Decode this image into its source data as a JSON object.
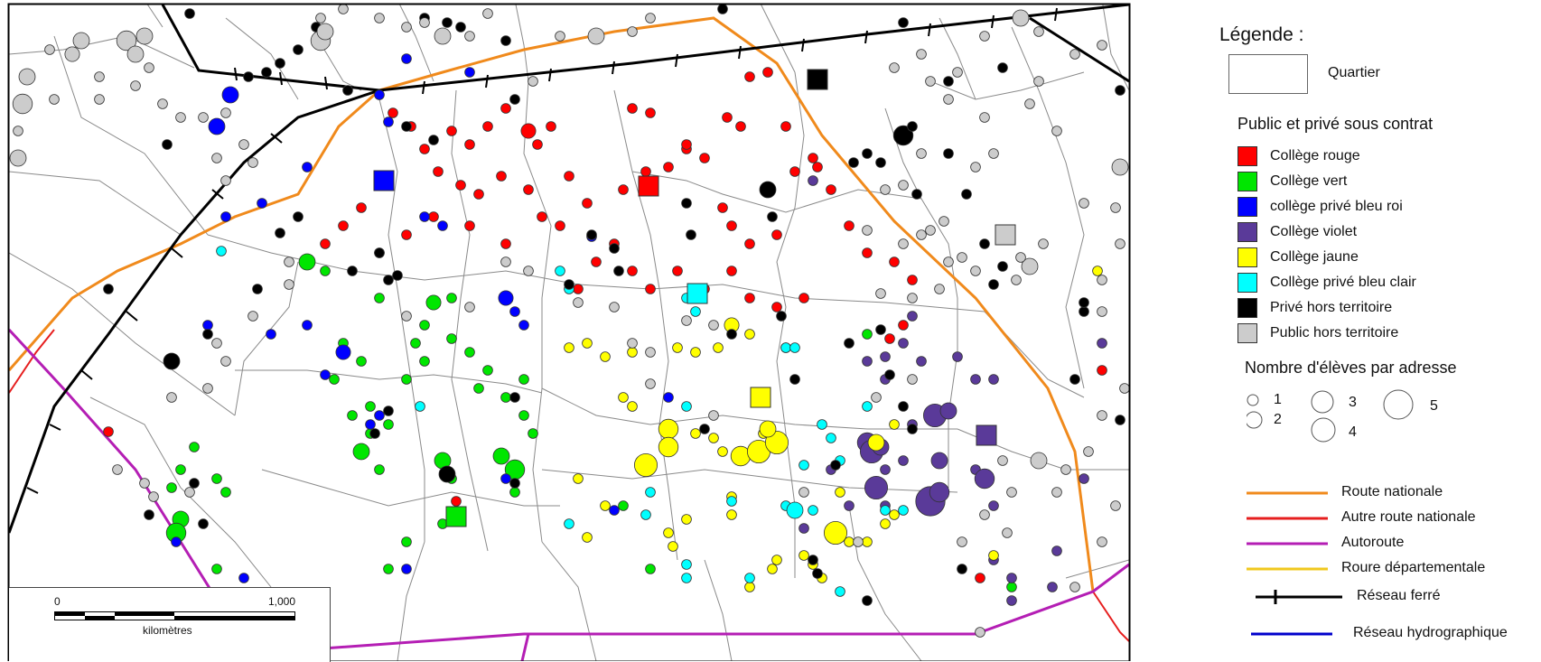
{
  "legend": {
    "title": "Légende :",
    "quartier_label": "Quartier",
    "section_colleges": "Public et privé sous contrat",
    "categories": [
      {
        "label": "Collège rouge",
        "color": "#ff0000"
      },
      {
        "label": "Collège vert",
        "color": "#00e600"
      },
      {
        "label": "collège privé bleu roi",
        "color": "#0000ff"
      },
      {
        "label": "Collège  violet",
        "color": "#5a3a99"
      },
      {
        "label": "Collège jaune",
        "color": "#ffff00"
      },
      {
        "label": "Collège privé bleu clair",
        "color": "#00ffff"
      },
      {
        "label": "Privé hors territoire",
        "color": "#000000"
      },
      {
        "label": "Public hors territoire",
        "color": "#cccccc"
      }
    ],
    "section_sizes": "Nombre d'élèves par adresse",
    "size_labels": [
      "1",
      "2",
      "3",
      "4",
      "5"
    ],
    "lines": [
      {
        "label": "Route nationale",
        "color": "#f08a1c",
        "icon": "line"
      },
      {
        "label": "Autre route nationale",
        "color": "#e61e1e",
        "icon": "line"
      },
      {
        "label": "Autoroute",
        "color": "#b41eb4",
        "icon": "line"
      },
      {
        "label": "Roure départementale",
        "color": "#f0c81e",
        "icon": "line"
      },
      {
        "label": "Réseau ferré",
        "color": "#000000",
        "icon": "rail"
      },
      {
        "label": "Réseau hydrographique",
        "color": "#0000cc",
        "icon": "line"
      }
    ]
  },
  "scale_bar": {
    "start_label": "0",
    "end_label": "1,000",
    "unit_label": "kilomètres"
  }
}
